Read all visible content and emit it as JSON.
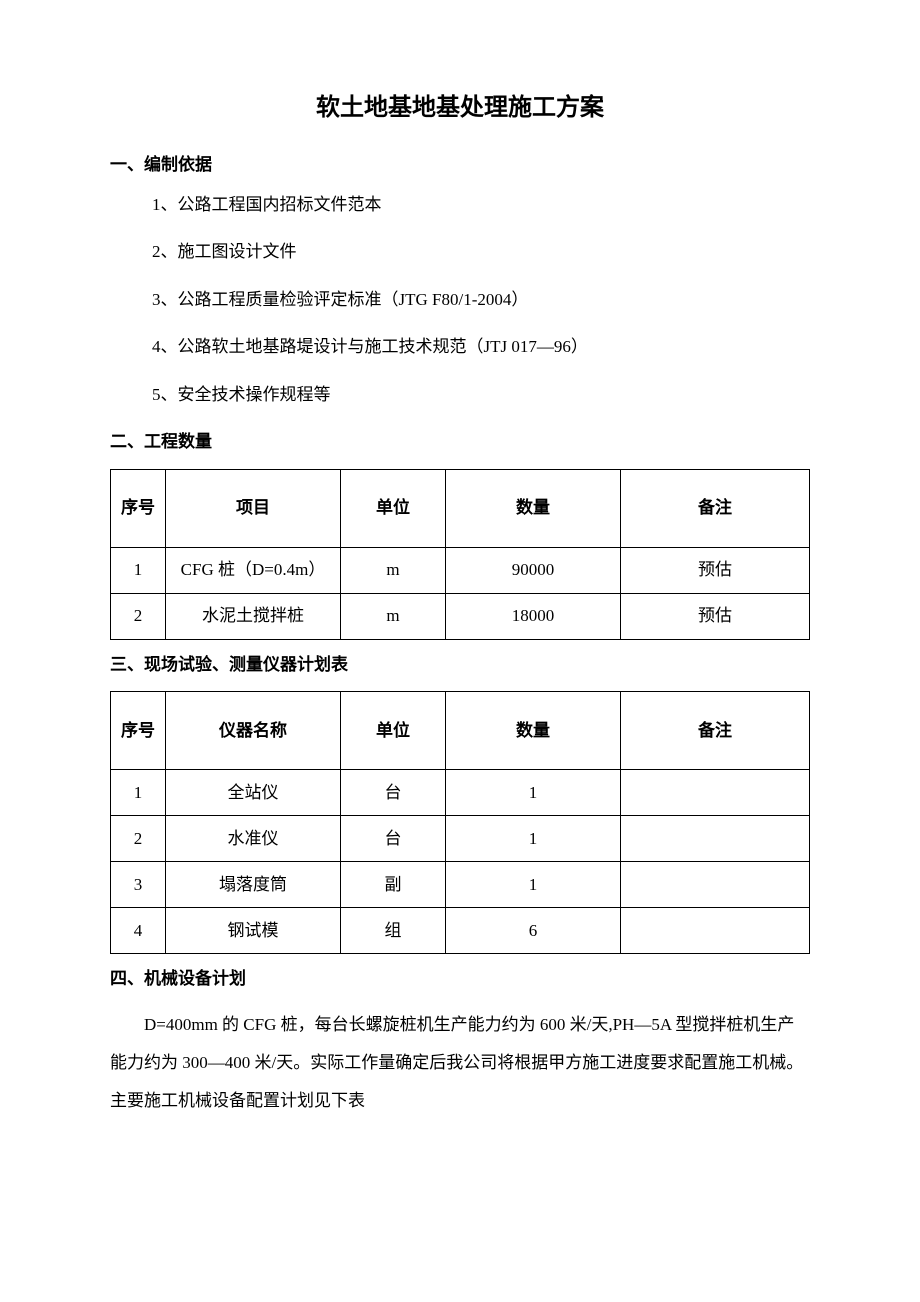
{
  "title": "软土地基地基处理施工方案",
  "sections": {
    "s1": {
      "heading": "一、编制依据"
    },
    "s2": {
      "heading": "二、工程数量"
    },
    "s3": {
      "heading": "三、现场试验、测量仪器计划表"
    },
    "s4": {
      "heading": "四、机械设备计划"
    }
  },
  "basis_list": {
    "i1": "1、公路工程国内招标文件范本",
    "i2": "2、施工图设计文件",
    "i3": "3、公路工程质量检验评定标准（JTG F80/1-2004）",
    "i4": "4、公路软土地基路堤设计与施工技术规范（JTJ 017—96）",
    "i5": "5、安全技术操作规程等"
  },
  "quantity_table": {
    "headers": {
      "seq": "序号",
      "item": "项目",
      "unit": "单位",
      "qty": "数量",
      "note": "备注"
    },
    "rows": [
      {
        "seq": "1",
        "item": "CFG 桩（D=0.4m）",
        "unit": "m",
        "qty": "90000",
        "note": "预估"
      },
      {
        "seq": "2",
        "item": "水泥土搅拌桩",
        "unit": "m",
        "qty": "18000",
        "note": "预估"
      }
    ]
  },
  "instrument_table": {
    "headers": {
      "seq": "序号",
      "name": "仪器名称",
      "unit": "单位",
      "qty": "数量",
      "note": "备注"
    },
    "rows": [
      {
        "seq": "1",
        "name": "全站仪",
        "unit": "台",
        "qty": "1",
        "note": ""
      },
      {
        "seq": "2",
        "name": "水准仪",
        "unit": "台",
        "qty": "1",
        "note": ""
      },
      {
        "seq": "3",
        "name": "塌落度筒",
        "unit": "副",
        "qty": "1",
        "note": ""
      },
      {
        "seq": "4",
        "name": "钢试模",
        "unit": "组",
        "qty": "6",
        "note": ""
      }
    ]
  },
  "machinery_para": "D=400mm 的 CFG 桩，每台长螺旋桩机生产能力约为 600 米/天,PH—5A 型搅拌桩机生产能力约为 300—400 米/天。实际工作量确定后我公司将根据甲方施工进度要求配置施工机械。主要施工机械设备配置计划见下表"
}
